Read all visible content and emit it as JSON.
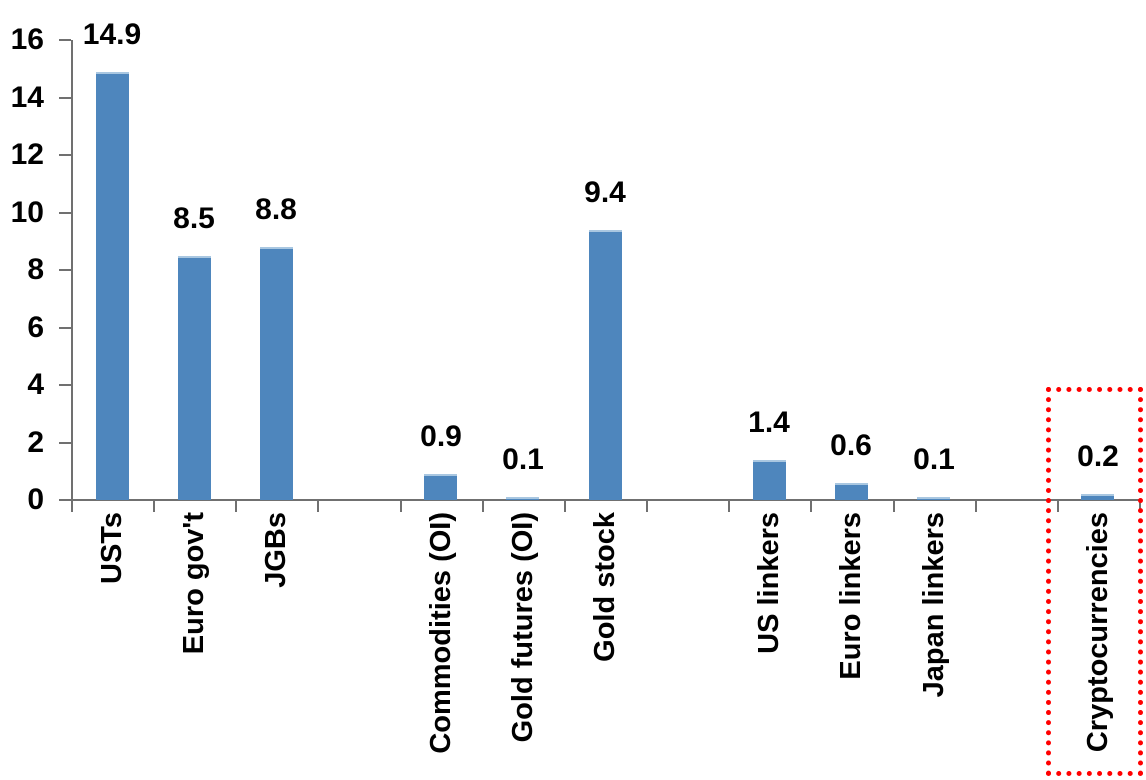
{
  "chart_data": {
    "type": "bar",
    "title": "",
    "xlabel": "",
    "ylabel": "",
    "categories": [
      "USTs",
      "Euro gov't",
      "JGBs",
      "Commodities (OI)",
      "Gold futures (OI)",
      "Gold stock",
      "US linkers",
      "Euro linkers",
      "Japan linkers",
      "Cryptocurrencies"
    ],
    "values": [
      14.9,
      8.5,
      8.8,
      0.9,
      0.1,
      9.4,
      1.4,
      0.6,
      0.1,
      0.2
    ],
    "value_labels": [
      "14.9",
      "8.5",
      "8.8",
      "0.9",
      "0.1",
      "9.4",
      "1.4",
      "0.6",
      "0.1",
      "0.2"
    ],
    "slots": [
      0,
      1,
      2,
      4,
      5,
      6,
      8,
      9,
      10,
      12
    ],
    "total_slots": 13,
    "y_ticks": [
      0,
      2,
      4,
      6,
      8,
      10,
      12,
      14,
      16
    ],
    "y_tick_labels": [
      "0",
      "2",
      "4",
      "6",
      "8",
      "10",
      "12",
      "14",
      "16"
    ],
    "ylim": [
      0,
      16
    ],
    "grid": false,
    "legend": false,
    "bar_color": "#4e86bd",
    "bar_top_edge_color": "#a9c7e1",
    "axis_color": "#707070",
    "text_color": "#000000",
    "background_color": "#ffffff",
    "highlight": {
      "category": "Cryptocurrencies",
      "border_color": "#ff0000",
      "border_style": "dotted"
    }
  }
}
